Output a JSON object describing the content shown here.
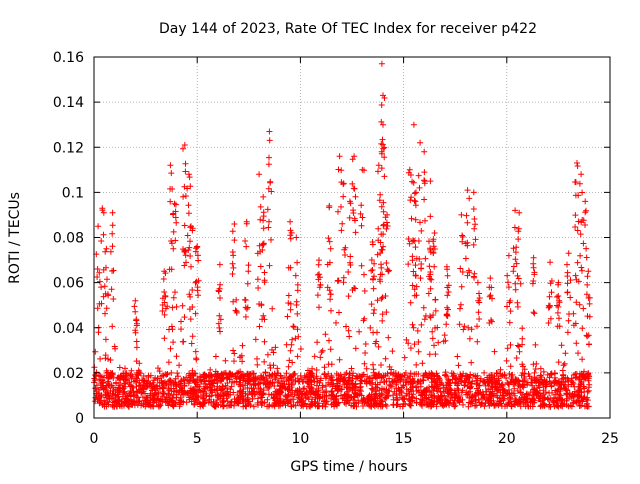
{
  "chart_data": {
    "type": "scatter",
    "title": "Day 144 of 2023, Rate Of TEC Index for receiver p422",
    "xlabel": "GPS time / hours",
    "ylabel": "ROTI / TECUs",
    "xlim": [
      0,
      25
    ],
    "ylim": [
      0,
      0.16
    ],
    "x_ticks": [
      0,
      5,
      10,
      15,
      20,
      25
    ],
    "x_tick_labels": [
      "0",
      "5",
      "10",
      "15",
      "20",
      "25"
    ],
    "y_ticks": [
      0,
      0.02,
      0.04,
      0.06,
      0.08,
      0.1,
      0.12,
      0.14,
      0.16
    ],
    "y_tick_labels": [
      "0",
      "0.02",
      "0.04",
      "0.06",
      "0.08",
      "0.1",
      "0.12",
      "0.14",
      "0.16"
    ],
    "grid": true,
    "marker": "+",
    "marker_color": "#ff0000",
    "data_x_range": [
      0,
      24
    ],
    "baseline_band": [
      0.005,
      0.02
    ],
    "spikes": [
      {
        "x": 0.2,
        "y": 0.085
      },
      {
        "x": 0.4,
        "y": 0.093
      },
      {
        "x": 0.6,
        "y": 0.075
      },
      {
        "x": 0.9,
        "y": 0.091
      },
      {
        "x": 2.0,
        "y": 0.052
      },
      {
        "x": 3.4,
        "y": 0.065
      },
      {
        "x": 3.7,
        "y": 0.112
      },
      {
        "x": 3.9,
        "y": 0.095
      },
      {
        "x": 4.4,
        "y": 0.121
      },
      {
        "x": 4.6,
        "y": 0.108
      },
      {
        "x": 4.7,
        "y": 0.085
      },
      {
        "x": 5.0,
        "y": 0.076
      },
      {
        "x": 6.1,
        "y": 0.068
      },
      {
        "x": 6.8,
        "y": 0.086
      },
      {
        "x": 7.4,
        "y": 0.087
      },
      {
        "x": 8.0,
        "y": 0.108
      },
      {
        "x": 8.2,
        "y": 0.098
      },
      {
        "x": 8.5,
        "y": 0.127
      },
      {
        "x": 9.5,
        "y": 0.087
      },
      {
        "x": 9.8,
        "y": 0.08
      },
      {
        "x": 10.9,
        "y": 0.07
      },
      {
        "x": 11.4,
        "y": 0.094
      },
      {
        "x": 11.9,
        "y": 0.116
      },
      {
        "x": 12.1,
        "y": 0.104
      },
      {
        "x": 12.4,
        "y": 0.096
      },
      {
        "x": 12.6,
        "y": 0.116
      },
      {
        "x": 13.0,
        "y": 0.11
      },
      {
        "x": 13.5,
        "y": 0.078
      },
      {
        "x": 13.8,
        "y": 0.112
      },
      {
        "x": 13.95,
        "y": 0.157
      },
      {
        "x": 14.0,
        "y": 0.143
      },
      {
        "x": 14.0,
        "y": 0.13
      },
      {
        "x": 14.2,
        "y": 0.09
      },
      {
        "x": 15.3,
        "y": 0.11
      },
      {
        "x": 15.5,
        "y": 0.13
      },
      {
        "x": 15.6,
        "y": 0.1
      },
      {
        "x": 15.8,
        "y": 0.122
      },
      {
        "x": 16.0,
        "y": 0.118
      },
      {
        "x": 16.3,
        "y": 0.105
      },
      {
        "x": 16.5,
        "y": 0.082
      },
      {
        "x": 17.1,
        "y": 0.067
      },
      {
        "x": 17.8,
        "y": 0.09
      },
      {
        "x": 18.1,
        "y": 0.101
      },
      {
        "x": 18.4,
        "y": 0.1
      },
      {
        "x": 18.6,
        "y": 0.06
      },
      {
        "x": 19.2,
        "y": 0.062
      },
      {
        "x": 20.1,
        "y": 0.072
      },
      {
        "x": 20.4,
        "y": 0.092
      },
      {
        "x": 20.6,
        "y": 0.091
      },
      {
        "x": 21.3,
        "y": 0.071
      },
      {
        "x": 22.1,
        "y": 0.069
      },
      {
        "x": 22.5,
        "y": 0.06
      },
      {
        "x": 23.0,
        "y": 0.073
      },
      {
        "x": 23.4,
        "y": 0.113
      },
      {
        "x": 23.6,
        "y": 0.108
      },
      {
        "x": 23.8,
        "y": 0.096
      },
      {
        "x": 23.95,
        "y": 0.065
      }
    ]
  }
}
